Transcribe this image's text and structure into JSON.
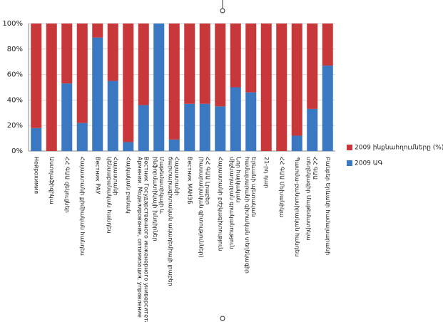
{
  "chart_data": {
    "type": "stacked_bar",
    "categories": [
      "Нейрохимия",
      "Աստղաֆիզիկա",
      "ՀՀ ԳԱԱ զեկուցներ",
      "Հայաստանի քիմիական հանդես",
      "Вестник РАУ",
      "Հայաստանի կենսաբանական հանդես",
      "Հայկական բանակ",
      "Вестник Государственного инженерного университета Армении. Моделирование, оптимизация, управление",
      "Մաթեմատիկայի և ինֆորմատիկայի խնդիրներ",
      "Հայաստանի ճարտարագիտական ակադեմիայի լրաբեր",
      "Вестник МАНЭБ",
      "ՀՀ ԳԱԱ Լրաբեր (հասարակական գիտություններ)",
      "Հայաստանի բժշկագիտություն",
      "Նոր հայկական միջնադարյան գրականություն",
      "Երևանի պետական համալսարանի գիտական տեղեկագիր",
      "21-րդ դար",
      "ՀՀ ԳԱԱ Մեխանիկա",
      "Պատմա-բանասիրական հանդես",
      "ՀՀ ԳԱԱ տեղեկագիր Մաթեմատիկա",
      "Բանբեր Երևանի համալսարանի"
    ],
    "series": [
      {
        "name": "2009 ԱԳ",
        "color": "#3b78c2",
        "values": [
          18,
          0,
          53,
          22,
          89,
          55,
          7,
          36,
          100,
          9,
          37,
          37,
          35,
          50,
          46,
          0,
          0,
          12,
          33,
          67
        ]
      },
      {
        "name": "2009 ինքնահղումները (%)",
        "color": "#c8383a",
        "values": [
          82,
          100,
          47,
          78,
          11,
          45,
          93,
          64,
          0,
          91,
          63,
          63,
          65,
          50,
          54,
          100,
          100,
          88,
          67,
          33
        ]
      }
    ],
    "ylim": [
      0,
      100
    ],
    "yticks": [
      {
        "value": 0,
        "label": "0%"
      },
      {
        "value": 20,
        "label": "20%"
      },
      {
        "value": 40,
        "label": "40%"
      },
      {
        "value": 60,
        "label": "60%"
      },
      {
        "value": 80,
        "label": "80%"
      },
      {
        "value": 100,
        "label": "100%"
      }
    ],
    "grid": true
  }
}
